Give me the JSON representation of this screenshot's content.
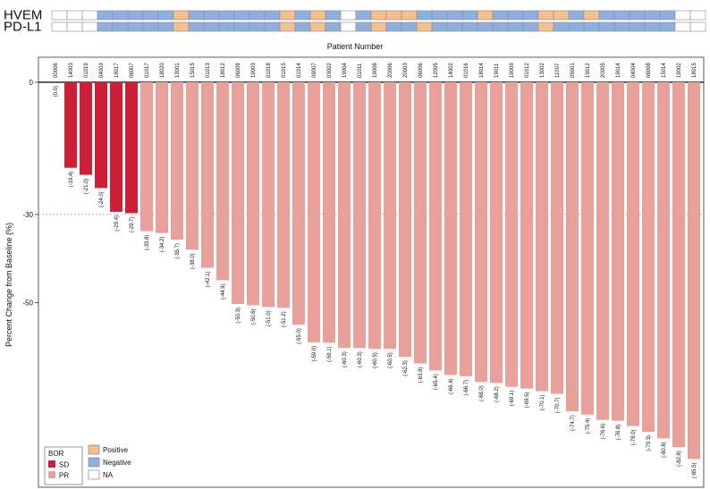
{
  "chart_data": {
    "type": "bar",
    "title": "Patient Number",
    "ylabel": "Percent Change from Baseline (%)",
    "xlabel": "",
    "ylim": [
      -86,
      0
    ],
    "yticks": [
      0,
      -30,
      -50
    ],
    "reference_line": -30,
    "categories": [
      "00006",
      "14003",
      "01019",
      "04003",
      "18017",
      "06007",
      "01017",
      "18020",
      "13001",
      "15015",
      "01013",
      "18012",
      "06009",
      "19003",
      "01018",
      "01015",
      "01014",
      "09007",
      "03002",
      "19004",
      "01011",
      "19008",
      "20006",
      "20003",
      "06006",
      "12005",
      "14002",
      "01016",
      "18014",
      "19011",
      "19009",
      "01012",
      "13002",
      "11007",
      "05001",
      "19012",
      "20005",
      "19014",
      "04004",
      "06008",
      "15014",
      "19002",
      "18015"
    ],
    "values": [
      0.0,
      -19.4,
      -21.0,
      -24.0,
      -29.4,
      -29.7,
      -33.8,
      -34.2,
      -35.7,
      -38.0,
      -42.1,
      -44.9,
      -50.3,
      -50.6,
      -51.0,
      -51.2,
      -55.0,
      -59.0,
      -59.1,
      -60.3,
      -60.3,
      -60.5,
      -60.5,
      -62.3,
      -63.8,
      -65.4,
      -66.4,
      -66.7,
      -68.0,
      -68.2,
      -69.1,
      -69.5,
      -70.1,
      -70.7,
      -74.7,
      -75.4,
      -76.6,
      -76.8,
      -78.0,
      -79.3,
      -80.8,
      -82.8,
      -85.5
    ],
    "value_labels": [
      "(0.0)",
      "(-19.4)",
      "(-21.0)",
      "(-24.0)",
      "(-29.4)",
      "(-29.7)",
      "(-33.8)",
      "(-34.2)",
      "(-35.7)",
      "(-38.0)",
      "(-42.1)",
      "(-44.9)",
      "(-50.3)",
      "(-50.6)",
      "(-51.0)",
      "(-51.2)",
      "(-55.0)",
      "(-59.0)",
      "(-59.1)",
      "(-60.3)",
      "(-60.3)",
      "(-60.5)",
      "(-60.5)",
      "(-62.3)",
      "(-63.8)",
      "(-65.4)",
      "(-66.4)",
      "(-66.7)",
      "(-68.0)",
      "(-68.2)",
      "(-69.1)",
      "(-69.5)",
      "(-70.1)",
      "(-70.7)",
      "(-74.7)",
      "(-75.4)",
      "(-76.6)",
      "(-76.8)",
      "(-78.0)",
      "(-79.3)",
      "(-80.8)",
      "(-82.8)",
      "(-85.5)"
    ],
    "bor": [
      "SD",
      "SD",
      "SD",
      "SD",
      "SD",
      "SD",
      "PR",
      "PR",
      "PR",
      "PR",
      "PR",
      "PR",
      "PR",
      "PR",
      "PR",
      "PR",
      "PR",
      "PR",
      "PR",
      "PR",
      "PR",
      "PR",
      "PR",
      "PR",
      "PR",
      "PR",
      "PR",
      "PR",
      "PR",
      "PR",
      "PR",
      "PR",
      "PR",
      "PR",
      "PR",
      "PR",
      "PR",
      "PR",
      "PR",
      "PR",
      "PR",
      "PR",
      "PR"
    ],
    "biomarker_tracks": [
      {
        "name": "HVEM",
        "values": [
          "NA",
          "NA",
          "NA",
          "Negative",
          "Negative",
          "Negative",
          "Negative",
          "Negative",
          "Positive",
          "Negative",
          "Negative",
          "Negative",
          "Negative",
          "Negative",
          "Negative",
          "Positive",
          "Negative",
          "Positive",
          "Negative",
          "NA",
          "Negative",
          "Positive",
          "Positive",
          "Positive",
          "Negative",
          "Negative",
          "Negative",
          "Negative",
          "Positive",
          "Negative",
          "Negative",
          "Negative",
          "Positive",
          "Positive",
          "Negative",
          "Positive",
          "Negative",
          "Negative",
          "Negative",
          "Negative",
          "Negative",
          "NA",
          "NA"
        ]
      },
      {
        "name": "PD-L1",
        "values": [
          "NA",
          "NA",
          "NA",
          "Negative",
          "Negative",
          "Negative",
          "Negative",
          "Negative",
          "Positive",
          "Negative",
          "Negative",
          "Negative",
          "Negative",
          "Negative",
          "Negative",
          "Positive",
          "Negative",
          "Positive",
          "Negative",
          "NA",
          "Negative",
          "Positive",
          "Negative",
          "Negative",
          "Positive",
          "Negative",
          "Negative",
          "Negative",
          "Negative",
          "Negative",
          "Negative",
          "Negative",
          "Positive",
          "Negative",
          "Negative",
          "Negative",
          "Negative",
          "Negative",
          "Negative",
          "Negative",
          "Negative",
          "NA",
          "NA"
        ]
      }
    ],
    "legend_bor": {
      "title": "BOR",
      "items": [
        {
          "label": "SD",
          "color": "#cc1f36"
        },
        {
          "label": "PR",
          "color": "#e8a19a"
        }
      ]
    },
    "legend_biomarker": {
      "items": [
        {
          "label": "Positive",
          "color": "#f7be8e"
        },
        {
          "label": "Negative",
          "color": "#8eb0e0"
        },
        {
          "label": "NA",
          "color": "#ffffff"
        }
      ]
    },
    "legend_placement": "bottom-left"
  }
}
